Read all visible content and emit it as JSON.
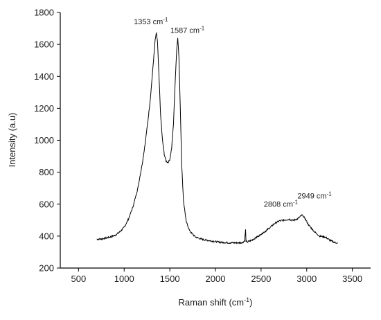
{
  "chart_data": {
    "type": "line",
    "title": "",
    "xlabel": "Raman shift (cm",
    "xlabel_sup": "-1",
    "xlabel_tail": ")",
    "ylabel": "Intensity (a.u)",
    "xlim": [
      300,
      3700
    ],
    "ylim": [
      200,
      1800
    ],
    "xticks": [
      500,
      1000,
      1500,
      2000,
      2500,
      3000,
      3500
    ],
    "yticks": [
      200,
      400,
      600,
      800,
      1000,
      1200,
      1400,
      1600,
      1800
    ],
    "grid": false,
    "line_color": "#000000",
    "series": [
      {
        "x": [
          700,
          750,
          800,
          850,
          900,
          950,
          1000,
          1050,
          1100,
          1150,
          1200,
          1230,
          1260,
          1290,
          1310,
          1330,
          1340,
          1353,
          1365,
          1380,
          1400,
          1420,
          1440,
          1460,
          1480,
          1500,
          1520,
          1540,
          1560,
          1575,
          1587,
          1600,
          1615,
          1630,
          1650,
          1680,
          1720,
          1780,
          1850,
          1950,
          2050,
          2150,
          2250,
          2300,
          2320,
          2330,
          2335,
          2345,
          2400,
          2450,
          2500,
          2550,
          2600,
          2650,
          2700,
          2750,
          2808,
          2850,
          2900,
          2949,
          2980,
          3020,
          3080,
          3140,
          3200,
          3260,
          3300,
          3340
        ],
        "y": [
          380,
          382,
          388,
          395,
          405,
          425,
          455,
          510,
          590,
          700,
          860,
          980,
          1120,
          1280,
          1420,
          1560,
          1630,
          1670,
          1620,
          1420,
          1150,
          1000,
          910,
          870,
          860,
          880,
          950,
          1100,
          1380,
          1560,
          1645,
          1520,
          1200,
          850,
          620,
          490,
          430,
          395,
          380,
          370,
          362,
          358,
          358,
          360,
          372,
          440,
          370,
          362,
          375,
          392,
          412,
          432,
          455,
          480,
          495,
          500,
          505,
          498,
          508,
          532,
          512,
          470,
          430,
          400,
          395,
          372,
          362,
          355
        ]
      }
    ],
    "annotations": [
      {
        "text": "1353 cm",
        "sup": "-1",
        "x": 1353,
        "y": 1670
      },
      {
        "text": "1587 cm",
        "sup": "-1",
        "x": 1587,
        "y": 1645
      },
      {
        "text": "2808 cm",
        "sup": "-1",
        "x": 2808,
        "y": 505
      },
      {
        "text": "2949 cm",
        "sup": "-1",
        "x": 2949,
        "y": 532
      }
    ]
  }
}
